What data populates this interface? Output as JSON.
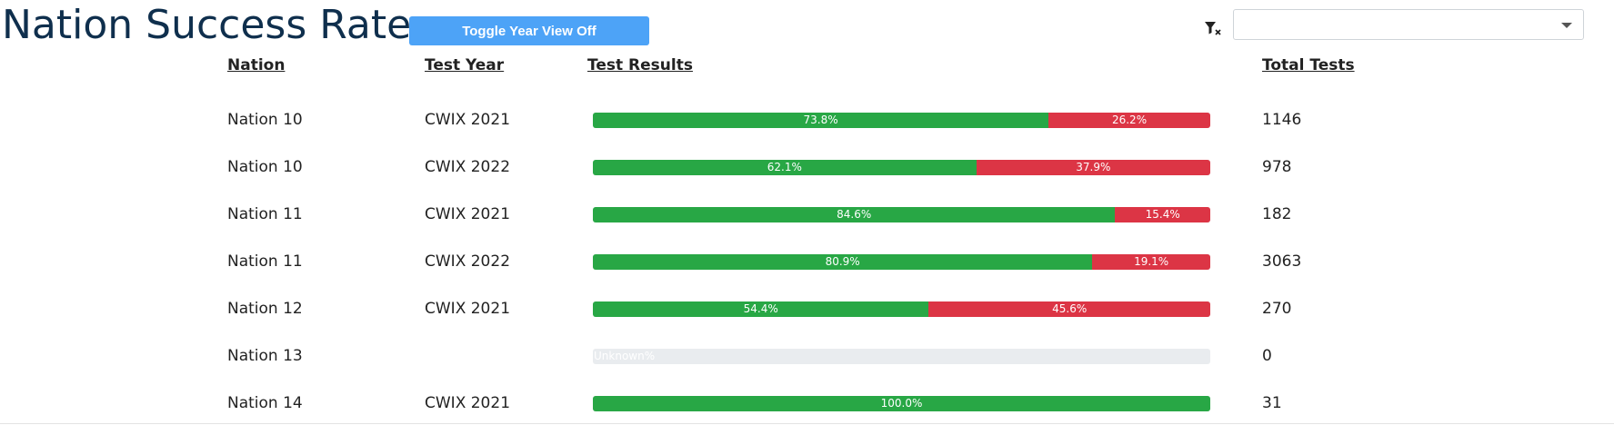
{
  "header": {
    "title": "Nation Success Rate",
    "toggle_label": "Toggle Year View Off",
    "filter_clear_icon": "filter-clear-icon",
    "select_value": ""
  },
  "columns": {
    "nation": "Nation",
    "test_year": "Test Year",
    "test_results": "Test Results",
    "total_tests": "Total Tests"
  },
  "colors": {
    "success": "#28a745",
    "fail": "#dc3545",
    "empty": "#e9ecef",
    "title": "#0f2f4d",
    "button": "#4da3f7"
  },
  "rows": [
    {
      "nation": "Nation 10",
      "year": "CWIX 2021",
      "success": 73.8,
      "fail": 26.2,
      "success_label": "73.8%",
      "fail_label": "26.2%",
      "total": "1146"
    },
    {
      "nation": "Nation 10",
      "year": "CWIX 2022",
      "success": 62.1,
      "fail": 37.9,
      "success_label": "62.1%",
      "fail_label": "37.9%",
      "total": "978"
    },
    {
      "nation": "Nation 11",
      "year": "CWIX 2021",
      "success": 84.6,
      "fail": 15.4,
      "success_label": "84.6%",
      "fail_label": "15.4%",
      "total": "182"
    },
    {
      "nation": "Nation 11",
      "year": "CWIX 2022",
      "success": 80.9,
      "fail": 19.1,
      "success_label": "80.9%",
      "fail_label": "19.1%",
      "total": "3063"
    },
    {
      "nation": "Nation 12",
      "year": "CWIX 2021",
      "success": 54.4,
      "fail": 45.6,
      "success_label": "54.4%",
      "fail_label": "45.6%",
      "total": "270"
    },
    {
      "nation": "Nation 13",
      "year": "",
      "success": null,
      "fail": null,
      "unknown_label": "Unknown%",
      "total": "0"
    },
    {
      "nation": "Nation 14",
      "year": "CWIX 2021",
      "success": 100.0,
      "fail": 0,
      "success_label": "100.0%",
      "fail_label": "",
      "total": "31"
    }
  ]
}
